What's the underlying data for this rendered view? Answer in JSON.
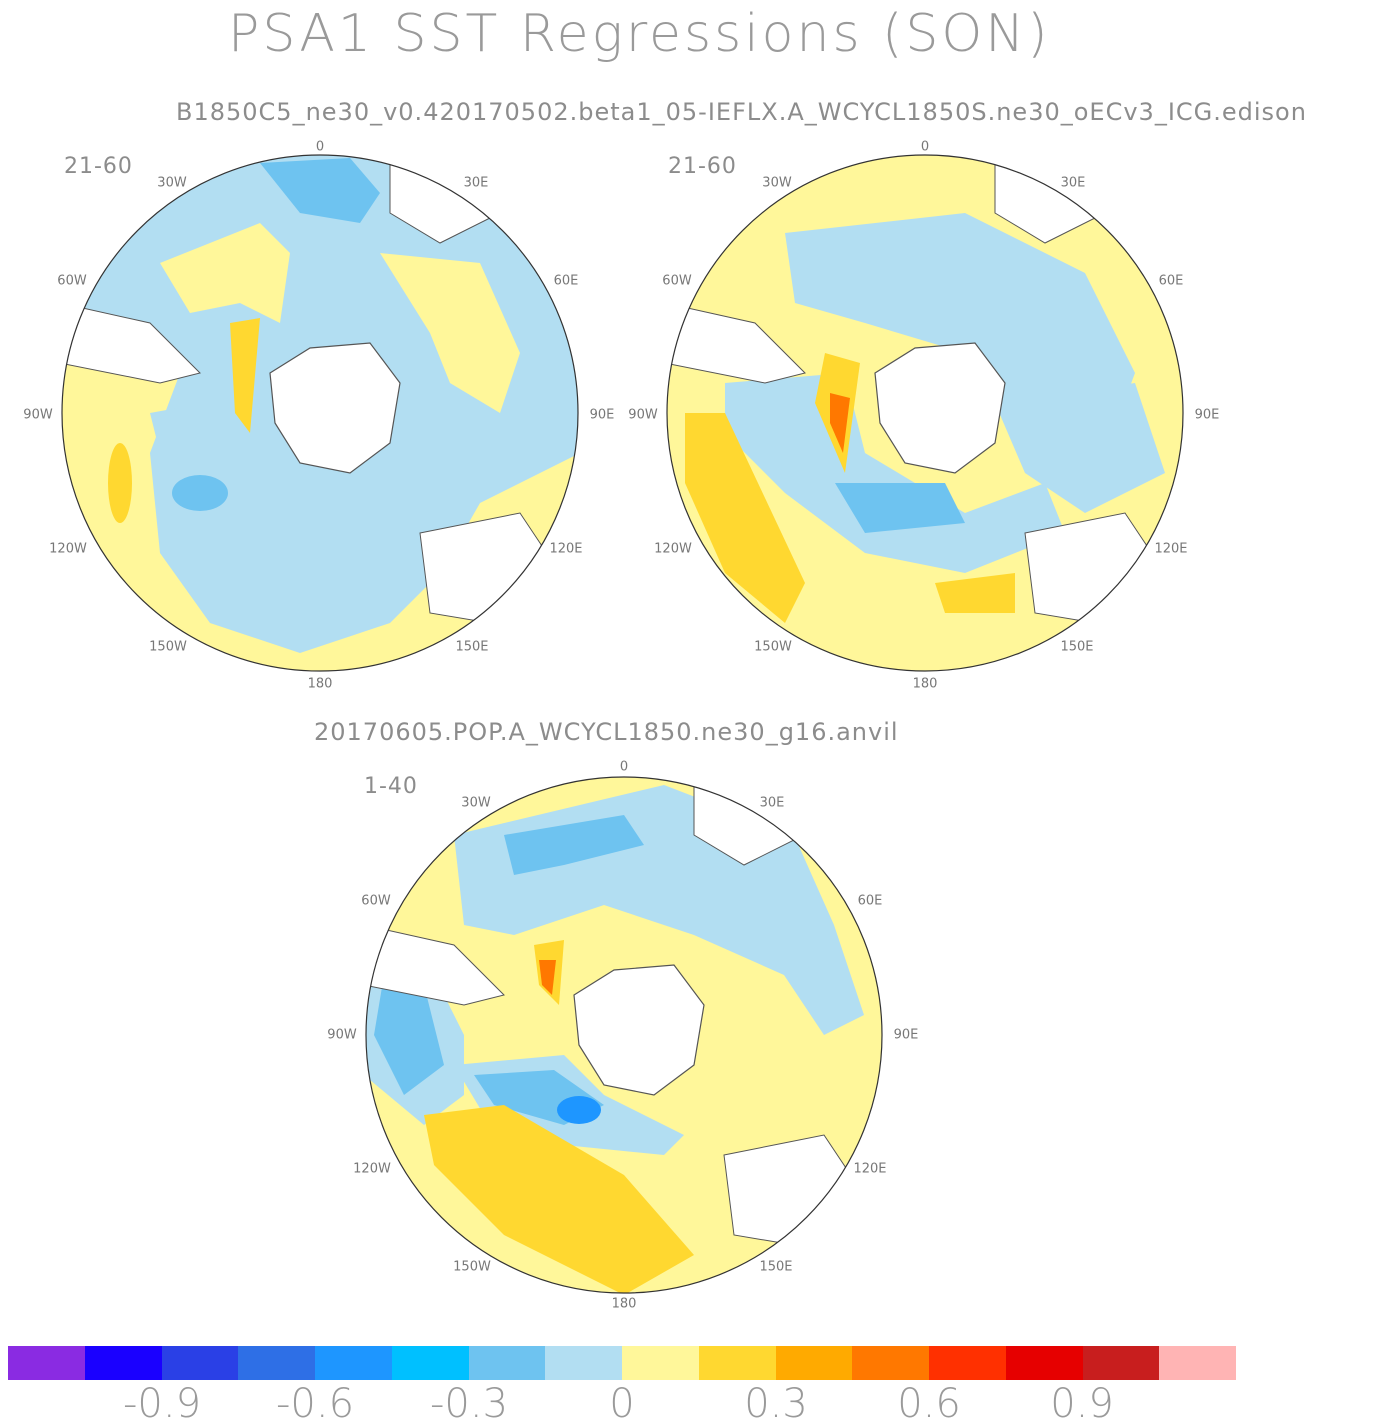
{
  "figure": {
    "title": "PSA1 SST Regressions (SON)",
    "panel_group_1_title": "B1850C5_ne30_v0.420170502.beta1_05-IEFLX.A_WCYCL1850S.ne30_oECv3_ICG.edison",
    "panel_group_2_title": "20170605.POP.A_WCYCL1850.ne30_g16.anvil"
  },
  "panels": [
    {
      "label": "21-60"
    },
    {
      "label": "21-60"
    },
    {
      "label": "1-40"
    }
  ],
  "longitude_labels": {
    "lon_0": "0",
    "lon_30e": "30E",
    "lon_60e": "60E",
    "lon_90e": "90E",
    "lon_120e": "120E",
    "lon_150e": "150E",
    "lon_180": "180",
    "lon_150w": "150W",
    "lon_120w": "120W",
    "lon_90w": "90W",
    "lon_60w": "60W",
    "lon_30w": "30W"
  },
  "colorbar": {
    "colors": [
      "#8a2be2",
      "#1a00ff",
      "#2a40e6",
      "#2e6fe6",
      "#1e96ff",
      "#00c0ff",
      "#6ec3f0",
      "#b2def2",
      "#fff79a",
      "#ffd830",
      "#ffaa00",
      "#ff7800",
      "#ff3000",
      "#e60000",
      "#c81e1e",
      "#ffb4b4"
    ],
    "tick_labels": [
      "-0.9",
      "-0.6",
      "-0.3",
      "0",
      "0.3",
      "0.6",
      "0.9"
    ]
  },
  "colors": {
    "land": "#ffffff",
    "coast": "#555555",
    "light_blue": "#b2def2",
    "mid_blue": "#6ec3f0",
    "blue": "#1e96ff",
    "light_yellow": "#fff79a",
    "yellow": "#ffd830",
    "orange": "#ffaa00",
    "red_orange": "#ff7800"
  }
}
